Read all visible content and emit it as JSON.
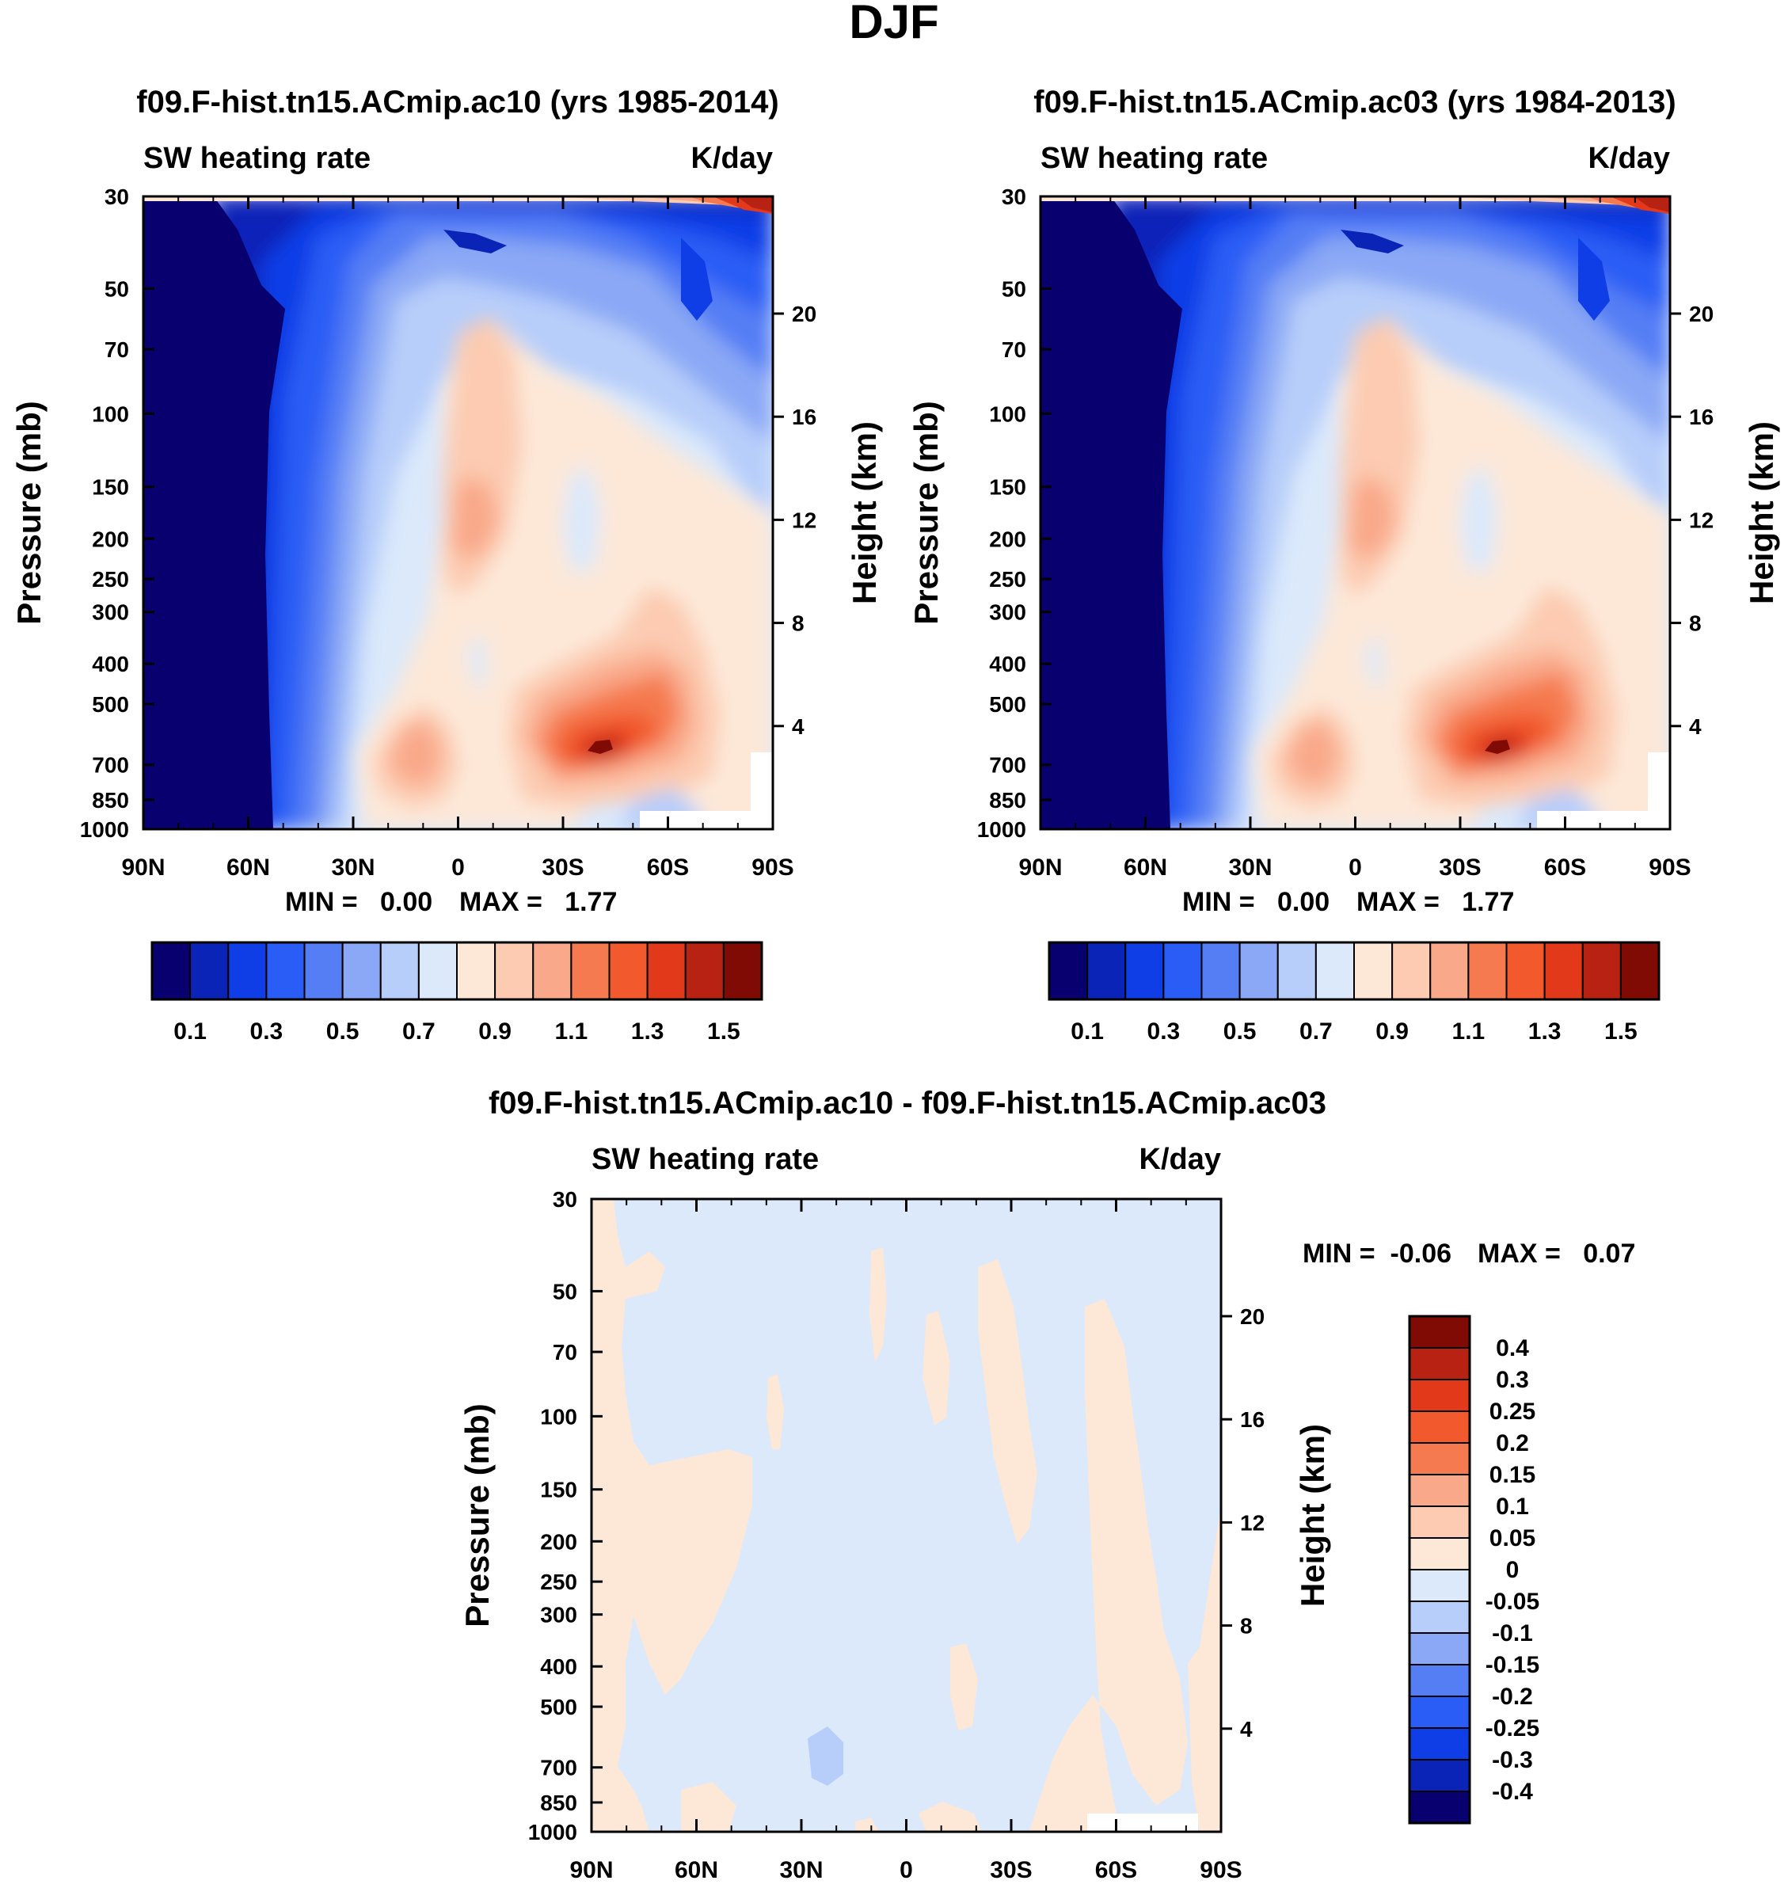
{
  "figure_title": "DJF",
  "colors": {
    "main_scale": [
      "#08006e",
      "#0b24b8",
      "#0f3ee6",
      "#2a5df5",
      "#557ef5",
      "#8aa8f5",
      "#b7cefa",
      "#dbe9fb",
      "#fde8d8",
      "#fccbb1",
      "#f9a98a",
      "#f57a50",
      "#f25a2d",
      "#e3391b",
      "#b82212",
      "#800b05"
    ],
    "diff_scale": [
      "#08006e",
      "#0b24b8",
      "#0f3ee6",
      "#2a5df5",
      "#557ef5",
      "#8aa8f5",
      "#b7cefa",
      "#dbe9fb",
      "#fde8d8",
      "#fccbb1",
      "#f9a98a",
      "#f57a50",
      "#f25a2d",
      "#e3391b",
      "#b82212",
      "#800b05"
    ]
  },
  "chart_data": [
    {
      "type": "contour",
      "id": "panel_ac10",
      "title": "f09.F-hist.tn15.ACmip.ac10 (yrs 1985-2014)",
      "left_label": "SW heating rate",
      "right_label": "K/day",
      "ylabel": "Pressure (mb)",
      "ylabel_right": "Height (km)",
      "x_ticks": [
        "90N",
        "60N",
        "30N",
        "0",
        "30S",
        "60S",
        "90S"
      ],
      "x_range": [
        90,
        -90
      ],
      "y_ticks": [
        "30",
        "50",
        "70",
        "100",
        "150",
        "200",
        "250",
        "300",
        "400",
        "500",
        "700",
        "850",
        "1000"
      ],
      "y_range": [
        30,
        1000
      ],
      "height_ticks": [
        "20",
        "16",
        "12",
        "8",
        "4"
      ],
      "min_text": "MIN =   0.00",
      "max_text": "MAX =   1.77",
      "colorbar_labels": [
        "0.1",
        "0.3",
        "0.5",
        "0.7",
        "0.9",
        "1.1",
        "1.3",
        "1.5"
      ],
      "levels": [
        0.0,
        0.1,
        0.2,
        0.3,
        0.4,
        0.5,
        0.6,
        0.7,
        0.8,
        0.9,
        1.0,
        1.1,
        1.2,
        1.3,
        1.4,
        1.5,
        1.6
      ]
    },
    {
      "type": "contour",
      "id": "panel_ac03",
      "title": "f09.F-hist.tn15.ACmip.ac03 (yrs 1984-2013)",
      "left_label": "SW heating rate",
      "right_label": "K/day",
      "ylabel": "Pressure (mb)",
      "ylabel_right": "Height (km)",
      "x_ticks": [
        "90N",
        "60N",
        "30N",
        "0",
        "30S",
        "60S",
        "90S"
      ],
      "x_range": [
        90,
        -90
      ],
      "y_ticks": [
        "30",
        "50",
        "70",
        "100",
        "150",
        "200",
        "250",
        "300",
        "400",
        "500",
        "700",
        "850",
        "1000"
      ],
      "y_range": [
        30,
        1000
      ],
      "height_ticks": [
        "20",
        "16",
        "12",
        "8",
        "4"
      ],
      "min_text": "MIN =   0.00",
      "max_text": "MAX =   1.77",
      "colorbar_labels": [
        "0.1",
        "0.3",
        "0.5",
        "0.7",
        "0.9",
        "1.1",
        "1.3",
        "1.5"
      ],
      "levels": [
        0.0,
        0.1,
        0.2,
        0.3,
        0.4,
        0.5,
        0.6,
        0.7,
        0.8,
        0.9,
        1.0,
        1.1,
        1.2,
        1.3,
        1.4,
        1.5,
        1.6
      ]
    },
    {
      "type": "contour",
      "id": "panel_diff",
      "title": "f09.F-hist.tn15.ACmip.ac10 - f09.F-hist.tn15.ACmip.ac03",
      "left_label": "SW heating rate",
      "right_label": "K/day",
      "ylabel": "Pressure (mb)",
      "ylabel_right": "Height (km)",
      "x_ticks": [
        "90N",
        "60N",
        "30N",
        "0",
        "30S",
        "60S",
        "90S"
      ],
      "x_range": [
        90,
        -90
      ],
      "y_ticks": [
        "30",
        "50",
        "70",
        "100",
        "150",
        "200",
        "250",
        "300",
        "400",
        "500",
        "700",
        "850",
        "1000"
      ],
      "y_range": [
        30,
        1000
      ],
      "height_ticks": [
        "20",
        "16",
        "12",
        "8",
        "4"
      ],
      "min_text": "MIN =  -0.06",
      "max_text": "MAX =   0.07",
      "colorbar_labels": [
        "0.4",
        "0.3",
        "0.25",
        "0.2",
        "0.15",
        "0.1",
        "0.05",
        "0",
        "-0.05",
        "-0.1",
        "-0.15",
        "-0.2",
        "-0.25",
        "-0.3",
        "-0.4"
      ],
      "levels": [
        -0.4,
        -0.3,
        -0.25,
        -0.2,
        -0.15,
        -0.1,
        -0.05,
        0,
        0.05,
        0.1,
        0.15,
        0.2,
        0.25,
        0.3,
        0.4
      ]
    }
  ]
}
